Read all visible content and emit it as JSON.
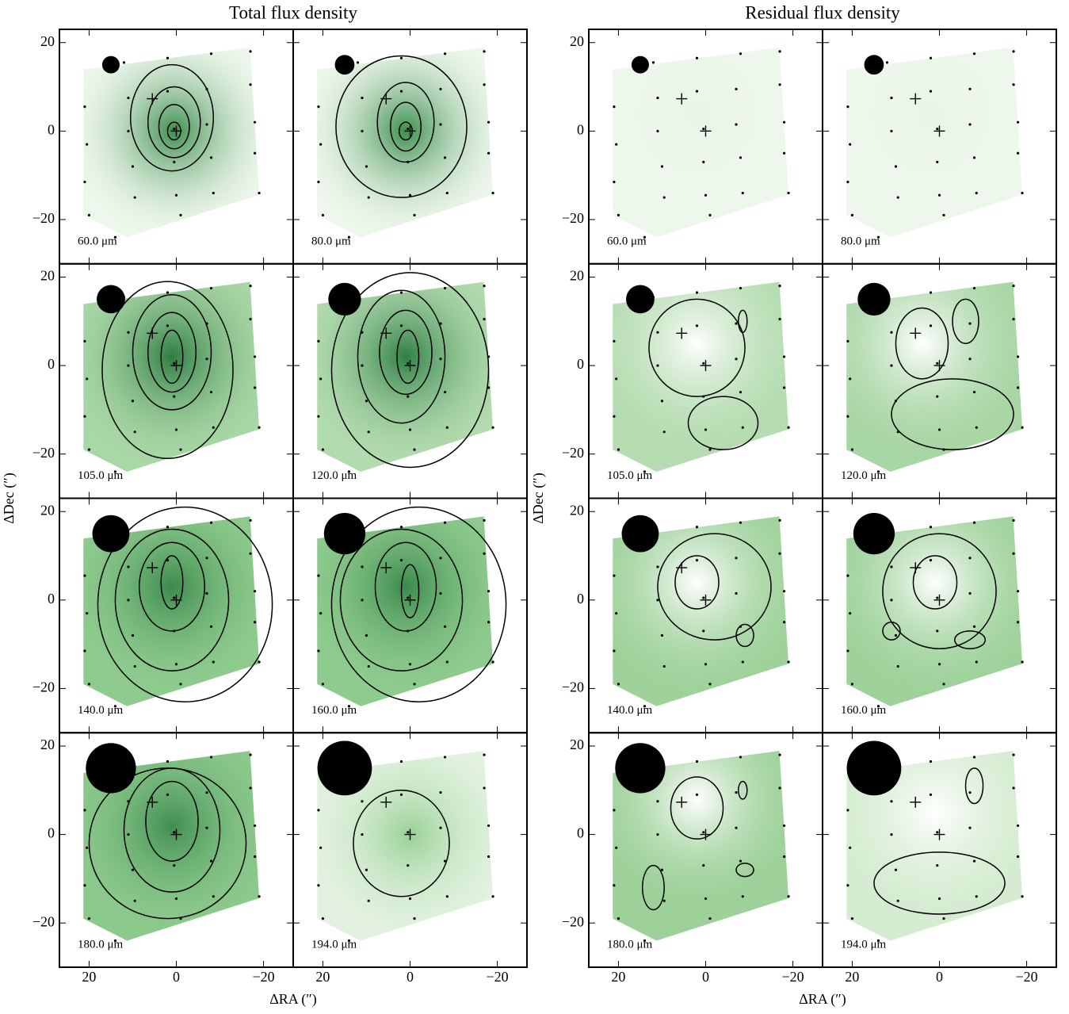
{
  "chart_data": [
    {
      "type": "contour",
      "title": "Total flux density",
      "x_label": "ΔRA (″)",
      "y_label": "ΔDec (″)",
      "xlim": [
        26.8,
        -26.8
      ],
      "ylim": [
        -30,
        23
      ],
      "xticks": [
        20,
        0,
        {
          "value": -20,
          "label": "−20"
        }
      ],
      "yticks": [
        20,
        0,
        {
          "value": -20,
          "label": "−20"
        }
      ],
      "footprint": {
        "x": [
          21.3,
          -16.9,
          -19,
          11.3,
          21.3
        ],
        "y": [
          13.9,
          18.9,
          -14.4,
          -24,
          -19
        ]
      },
      "spaxels": {
        "x": [
          21,
          20.5,
          21,
          20,
          14,
          12,
          11,
          11,
          10,
          9.5,
          2,
          2,
          0.5,
          0.5,
          0,
          -1,
          -8,
          -7,
          -7,
          -8,
          -8.5,
          -17,
          -17,
          -18,
          -18,
          -19
        ],
        "y": [
          5.5,
          -3,
          -11.5,
          -19,
          -24,
          15.5,
          7.5,
          0,
          -8,
          -15,
          16.5,
          9,
          0.5,
          -7,
          -14.5,
          -19,
          17.5,
          9.5,
          1.5,
          -6,
          -14,
          18,
          10.5,
          2,
          -5,
          -14
        ]
      },
      "markers": {
        "x": [
          5.5,
          0
        ],
        "y": [
          7.3,
          0
        ]
      },
      "beam_center": {
        "x": 15,
        "y": 15
      },
      "panels": [
        {
          "label": "60.0 μm",
          "beam": 4,
          "peak": {
            "x": 0.5,
            "y": 0
          },
          "edge_color": "#eef7ec",
          "peak_color": "#3d8f4e",
          "contours": [
            {
              "x": 0.5,
              "y": 0,
              "rx": 1.5,
              "ry": 2
            },
            {
              "x": 0.5,
              "y": 1,
              "rx": 3.5,
              "ry": 5
            },
            {
              "x": 0.5,
              "y": 2,
              "rx": 6,
              "ry": 8
            },
            {
              "x": 1,
              "y": 3,
              "rx": 9.5,
              "ry": 12
            }
          ]
        },
        {
          "label": "80.0 μm",
          "beam": 4.5,
          "peak": {
            "x": 1,
            "y": 0
          },
          "edge_color": "#eef7ec",
          "peak_color": "#3d8f4e",
          "contours": [
            {
              "x": 1,
              "y": 0,
              "rx": 1.5,
              "ry": 2
            },
            {
              "x": 1,
              "y": 1,
              "rx": 3.5,
              "ry": 5.5
            },
            {
              "x": 1,
              "y": 2,
              "rx": 6.5,
              "ry": 9
            },
            {
              "x": 2,
              "y": 1,
              "rx": 15,
              "ry": 16
            }
          ]
        },
        {
          "label": "105.0 μm",
          "beam": 6.5,
          "peak": {
            "x": 1,
            "y": 2
          },
          "edge_color": "#a9d7a6",
          "peak_color": "#2e7d43",
          "contours": [
            {
              "x": 1,
              "y": 2,
              "rx": 2.5,
              "ry": 6
            },
            {
              "x": 1,
              "y": 3,
              "rx": 5.5,
              "ry": 9
            },
            {
              "x": 1,
              "y": 3,
              "rx": 9,
              "ry": 13
            },
            {
              "x": 2,
              "y": -1,
              "rx": 15,
              "ry": 20
            }
          ]
        },
        {
          "label": "120.0 μm",
          "beam": 7.5,
          "peak": {
            "x": 1,
            "y": 2
          },
          "edge_color": "#b2dbae",
          "peak_color": "#2f7f44",
          "contours": [
            {
              "x": 0.5,
              "y": 2,
              "rx": 2.5,
              "ry": 6
            },
            {
              "x": 1,
              "y": 3,
              "rx": 6,
              "ry": 9.5
            },
            {
              "x": 2,
              "y": 2,
              "rx": 10,
              "ry": 15
            },
            {
              "x": 0,
              "y": -1,
              "rx": 18,
              "ry": 22
            }
          ]
        },
        {
          "label": "140.0 μm",
          "beam": 8.5,
          "peak": {
            "x": 1,
            "y": 3
          },
          "edge_color": "#8fcb8e",
          "peak_color": "#3a8a4c",
          "contours": [
            {
              "x": 1,
              "y": 4,
              "rx": 2.5,
              "ry": 6
            },
            {
              "x": 1,
              "y": 3,
              "rx": 7.5,
              "ry": 10
            },
            {
              "x": 1,
              "y": 0,
              "rx": 13,
              "ry": 16
            },
            {
              "x": -2,
              "y": -1,
              "rx": 20,
              "ry": 22
            }
          ]
        },
        {
          "label": "160.0 μm",
          "beam": 9.5,
          "peak": {
            "x": 1,
            "y": 3
          },
          "edge_color": "#8fcb8e",
          "peak_color": "#3a8a4c",
          "contours": [
            {
              "x": 0,
              "y": 2,
              "rx": 2,
              "ry": 6
            },
            {
              "x": 1,
              "y": 3,
              "rx": 7,
              "ry": 10
            },
            {
              "x": 2,
              "y": 0,
              "rx": 14,
              "ry": 16
            },
            {
              "x": -2,
              "y": -1,
              "rx": 20,
              "ry": 22
            }
          ]
        },
        {
          "label": "180.0 μm",
          "beam": 11.5,
          "peak": {
            "x": 1,
            "y": 2
          },
          "edge_color": "#8cc98c",
          "peak_color": "#3f8e50",
          "contours": [
            {
              "x": 1,
              "y": 3,
              "rx": 6,
              "ry": 9
            },
            {
              "x": 1,
              "y": 1,
              "rx": 11,
              "ry": 14
            },
            {
              "x": 2,
              "y": -2,
              "rx": 18,
              "ry": 17
            }
          ]
        },
        {
          "label": "194.0 μm",
          "beam": 12.5,
          "peak": {
            "x": 0,
            "y": 0
          },
          "edge_color": "#e3f2e0",
          "peak_color": "#98d196",
          "contours": [
            {
              "x": 2,
              "y": -2,
              "rx": 11,
              "ry": 12
            }
          ]
        }
      ]
    },
    {
      "type": "contour",
      "title": "Residual flux density",
      "x_label": "ΔRA (″)",
      "y_label": "ΔDec (″)",
      "xlim": [
        26.8,
        -26.8
      ],
      "ylim": [
        -30,
        23
      ],
      "xticks": [
        20,
        0,
        {
          "value": -20,
          "label": "−20"
        }
      ],
      "yticks": [
        20,
        0,
        {
          "value": -20,
          "label": "−20"
        }
      ],
      "footprint": {
        "x": [
          21.3,
          -16.9,
          -19,
          11.3,
          21.3
        ],
        "y": [
          13.9,
          18.9,
          -14.4,
          -24,
          -19
        ]
      },
      "spaxels": {
        "x": [
          21,
          20.5,
          21,
          20,
          14,
          12,
          11,
          11,
          10,
          9.5,
          2,
          2,
          0.5,
          0.5,
          0,
          -1,
          -8,
          -7,
          -7,
          -8,
          -8.5,
          -17,
          -17,
          -18,
          -18,
          -19
        ],
        "y": [
          5.5,
          -3,
          -11.5,
          -19,
          -24,
          15.5,
          7.5,
          0,
          -8,
          -15,
          16.5,
          9,
          0.5,
          -7,
          -14.5,
          -19,
          17.5,
          9.5,
          1.5,
          -6,
          -14,
          18,
          10.5,
          2,
          -5,
          -14
        ]
      },
      "markers": {
        "x": [
          5.5,
          0
        ],
        "y": [
          7.3,
          0
        ]
      },
      "beam_center": {
        "x": 15,
        "y": 15
      },
      "panels": [
        {
          "label": "60.0 μm",
          "beam": 4,
          "peak": {
            "x": 2,
            "y": 4
          },
          "edge_color": "#eef7ec",
          "peak_color": "#e8f5e5",
          "contours": []
        },
        {
          "label": "80.0 μm",
          "beam": 4.5,
          "peak": {
            "x": 2,
            "y": 4
          },
          "edge_color": "#eef7ec",
          "peak_color": "#e8f5e5",
          "contours": []
        },
        {
          "label": "105.0 μm",
          "beam": 6.5,
          "peak": {
            "x": 2,
            "y": 5
          },
          "edge_color": "#b5dcb0",
          "peak_color": "#ffffff",
          "contours": [
            {
              "x": 2,
              "y": 4,
              "rx": 11,
              "ry": 11
            },
            {
              "x": -8.5,
              "y": 10,
              "rx": 1,
              "ry": 2.5
            },
            {
              "x": -4,
              "y": -13,
              "rx": 8,
              "ry": 6
            }
          ]
        },
        {
          "label": "120.0 μm",
          "beam": 7.5,
          "peak": {
            "x": 4,
            "y": 5
          },
          "edge_color": "#a9d6a5",
          "peak_color": "#ffffff",
          "contours": [
            {
              "x": 4,
              "y": 5,
              "rx": 6,
              "ry": 8
            },
            {
              "x": -6,
              "y": 10,
              "rx": 3,
              "ry": 5
            },
            {
              "x": -3,
              "y": -11,
              "rx": 14,
              "ry": 8
            }
          ]
        },
        {
          "label": "140.0 μm",
          "beam": 8.5,
          "peak": {
            "x": 2,
            "y": 4
          },
          "edge_color": "#9fd29b",
          "peak_color": "#ffffff",
          "contours": [
            {
              "x": 2,
              "y": 4,
              "rx": 5,
              "ry": 6
            },
            {
              "x": -9,
              "y": -8,
              "rx": 2,
              "ry": 2.5
            },
            {
              "x": -2,
              "y": 3,
              "rx": 13,
              "ry": 12
            }
          ]
        },
        {
          "label": "160.0 μm",
          "beam": 9.5,
          "peak": {
            "x": 1,
            "y": 4
          },
          "edge_color": "#9fd29b",
          "peak_color": "#ffffff",
          "contours": [
            {
              "x": 1,
              "y": 4,
              "rx": 5,
              "ry": 6
            },
            {
              "x": -7,
              "y": -9,
              "rx": 3.5,
              "ry": 2
            },
            {
              "x": 11,
              "y": -7,
              "rx": 2,
              "ry": 2
            },
            {
              "x": 0,
              "y": 2,
              "rx": 13,
              "ry": 13
            }
          ]
        },
        {
          "label": "180.0 μm",
          "beam": 11.5,
          "peak": {
            "x": 2,
            "y": 8
          },
          "edge_color": "#9dd199",
          "peak_color": "#ffffff",
          "contours": [
            {
              "x": 2,
              "y": 6,
              "rx": 6,
              "ry": 7
            },
            {
              "x": -8.5,
              "y": 10,
              "rx": 1,
              "ry": 2
            },
            {
              "x": 12,
              "y": -12,
              "rx": 2.5,
              "ry": 5
            },
            {
              "x": -9,
              "y": -8,
              "rx": 2,
              "ry": 1.5
            }
          ]
        },
        {
          "label": "194.0 μm",
          "beam": 12.5,
          "peak": {
            "x": 1,
            "y": 5
          },
          "edge_color": "#d5ecd1",
          "peak_color": "#ffffff",
          "contours": [
            {
              "x": -8,
              "y": 11,
              "rx": 2,
              "ry": 4
            },
            {
              "x": 0,
              "y": -11,
              "rx": 15,
              "ry": 7
            }
          ]
        }
      ]
    }
  ]
}
